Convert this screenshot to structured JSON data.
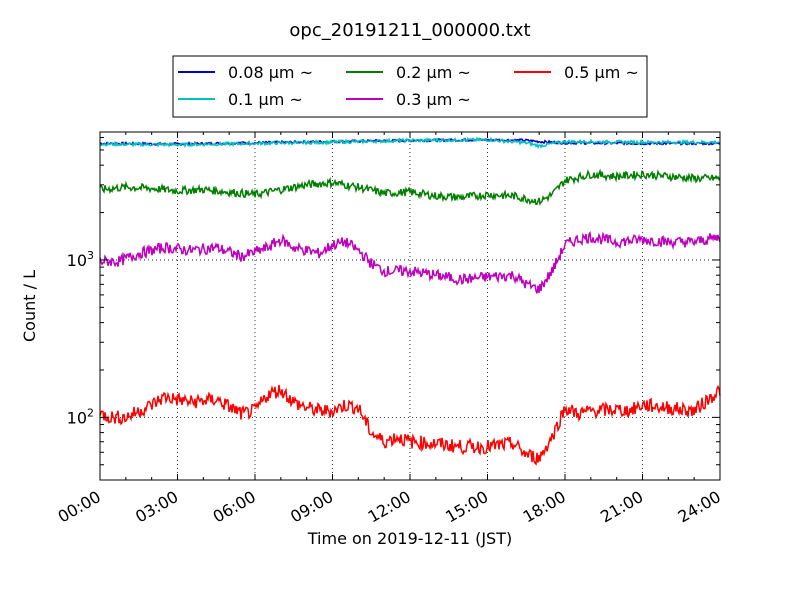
{
  "chart_data": {
    "type": "line",
    "title": "opc_20191211_000000.txt",
    "xlabel": "Time on 2019-12-11 (JST)",
    "ylabel": "Count / L",
    "yscale": "log",
    "ylim": [
      40,
      6500
    ],
    "xlim": [
      "2019-12-11 00:00",
      "2019-12-12 00:00"
    ],
    "xticks": [
      "00:00",
      "03:00",
      "06:00",
      "09:00",
      "12:00",
      "15:00",
      "18:00",
      "21:00",
      "24:00"
    ],
    "yticks": [
      {
        "value": 100,
        "base": "10",
        "exp": "2"
      },
      {
        "value": 1000,
        "base": "10",
        "exp": "3"
      }
    ],
    "grid": true,
    "legend_position": "top-center",
    "series": [
      {
        "name": "0.08 µm ~",
        "color": "#0000bf",
        "x": [
          "00:00",
          "03:00",
          "06:00",
          "09:00",
          "12:00",
          "15:00",
          "16:30",
          "17:00",
          "18:00",
          "21:00",
          "24:00"
        ],
        "y": [
          5500,
          5450,
          5550,
          5650,
          5750,
          5800,
          5750,
          5650,
          5550,
          5500,
          5500
        ]
      },
      {
        "name": "0.1 µm ~",
        "color": "#00bfbf",
        "x": [
          "00:00",
          "03:00",
          "06:00",
          "09:00",
          "12:00",
          "15:00",
          "16:30",
          "17:00",
          "18:00",
          "21:00",
          "24:00"
        ],
        "y": [
          5450,
          5400,
          5500,
          5600,
          5750,
          5800,
          5550,
          5300,
          5650,
          5600,
          5600
        ]
      },
      {
        "name": "0.2 µm ~",
        "color": "#007f00",
        "x": [
          "00:00",
          "01:00",
          "02:00",
          "03:00",
          "04:00",
          "05:00",
          "06:00",
          "07:00",
          "08:00",
          "09:00",
          "10:00",
          "11:00",
          "12:00",
          "13:00",
          "14:00",
          "15:00",
          "16:00",
          "17:00",
          "17:30",
          "18:00",
          "19:00",
          "20:00",
          "21:00",
          "22:00",
          "23:00",
          "24:00"
        ],
        "y": [
          2800,
          2900,
          2850,
          2750,
          2800,
          2700,
          2600,
          2800,
          3000,
          3100,
          2900,
          2650,
          2700,
          2550,
          2500,
          2600,
          2550,
          2350,
          2600,
          3200,
          3500,
          3400,
          3500,
          3400,
          3300,
          3300
        ]
      },
      {
        "name": "0.3 µm ~",
        "color": "#bf00bf",
        "x": [
          "00:00",
          "00:45",
          "01:30",
          "02:30",
          "03:30",
          "04:30",
          "05:30",
          "06:30",
          "07:00",
          "07:30",
          "08:30",
          "09:00",
          "09:30",
          "10:00",
          "10:30",
          "11:00",
          "12:00",
          "13:00",
          "14:00",
          "15:00",
          "16:00",
          "16:30",
          "17:00",
          "17:30",
          "18:00",
          "18:30",
          "19:00",
          "20:00",
          "21:00",
          "22:00",
          "23:00",
          "24:00"
        ],
        "y": [
          980,
          980,
          1100,
          1200,
          1150,
          1200,
          1050,
          1200,
          1350,
          1200,
          1100,
          1250,
          1300,
          1150,
          950,
          850,
          850,
          800,
          750,
          780,
          800,
          700,
          650,
          850,
          1250,
          1350,
          1400,
          1300,
          1350,
          1300,
          1300,
          1400
        ]
      },
      {
        "name": "0.5 µm ~",
        "color": "#ff0000",
        "x": [
          "00:00",
          "00:30",
          "01:00",
          "02:00",
          "02:30",
          "03:30",
          "04:30",
          "05:30",
          "06:00",
          "06:30",
          "07:00",
          "07:30",
          "08:00",
          "08:30",
          "09:00",
          "09:30",
          "10:00",
          "10:30",
          "11:00",
          "11:30",
          "12:00",
          "13:00",
          "14:00",
          "15:00",
          "16:00",
          "16:30",
          "17:00",
          "17:30",
          "18:00",
          "18:30",
          "19:00",
          "20:00",
          "20:30",
          "21:00",
          "22:00",
          "23:00",
          "24:00"
        ],
        "y": [
          105,
          100,
          100,
          120,
          135,
          125,
          130,
          105,
          110,
          140,
          150,
          125,
          115,
          110,
          110,
          120,
          115,
          80,
          70,
          75,
          70,
          68,
          65,
          65,
          68,
          58,
          55,
          75,
          115,
          105,
          110,
          112,
          110,
          120,
          115,
          110,
          150
        ]
      }
    ]
  }
}
